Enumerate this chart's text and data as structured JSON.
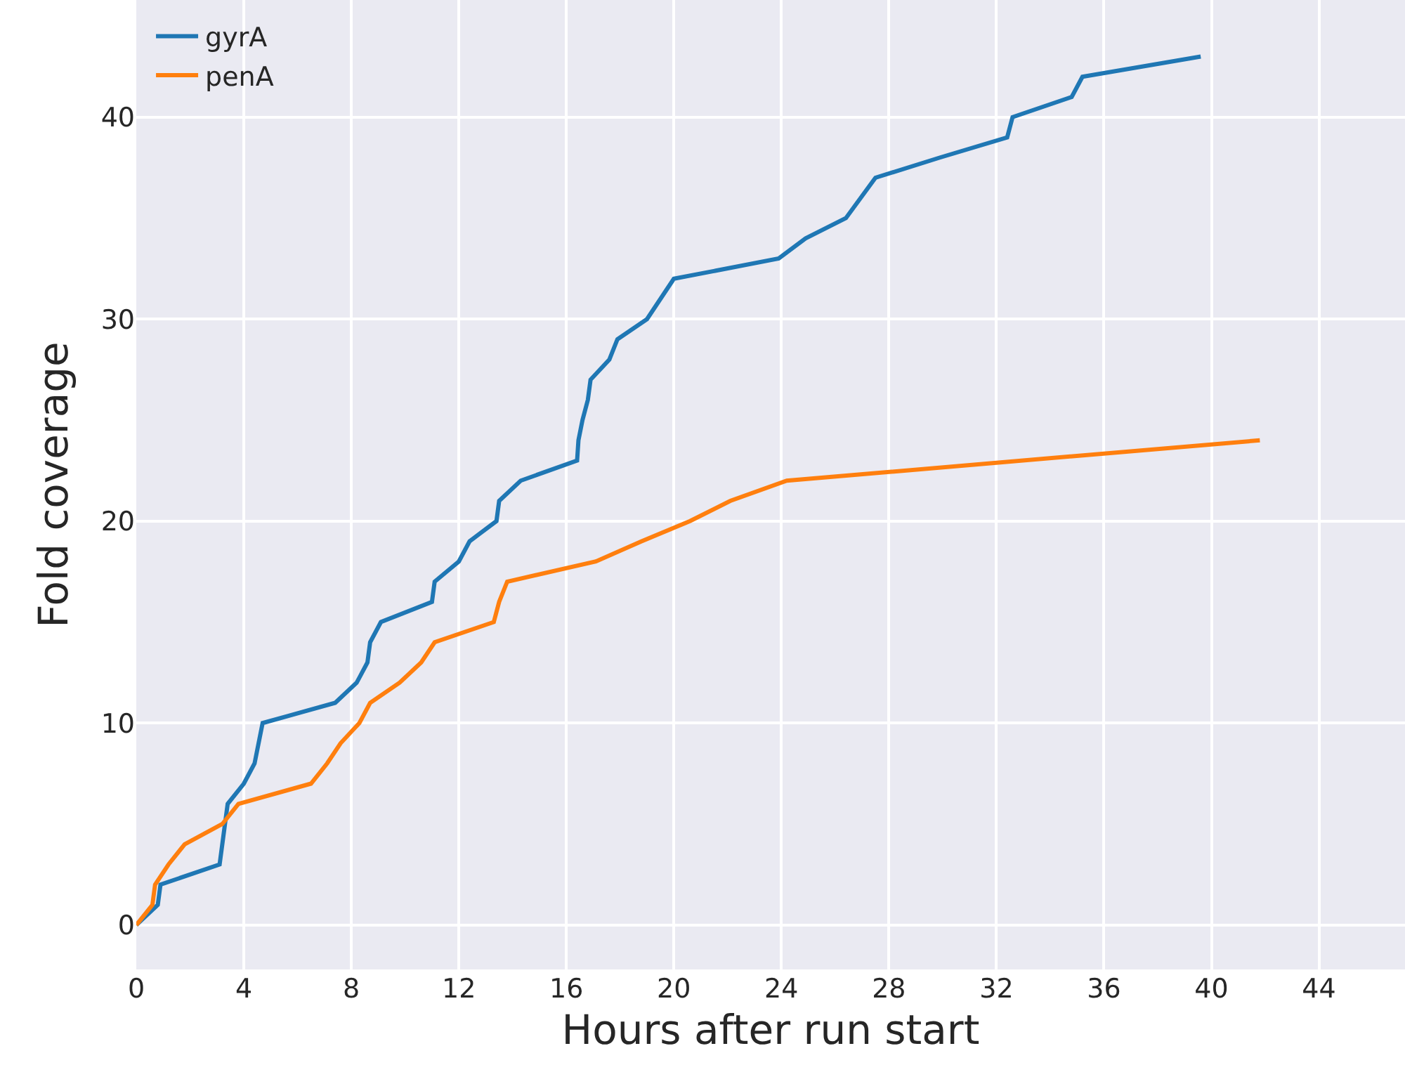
{
  "chart_data": {
    "type": "line",
    "xlabel": "Hours after run start",
    "ylabel": "Fold coverage",
    "xlim": [
      0,
      47.2
    ],
    "ylim": [
      -2.2,
      45.8
    ],
    "xticks": [
      0,
      4,
      8,
      12,
      16,
      20,
      24,
      28,
      32,
      36,
      40,
      44
    ],
    "yticks": [
      0,
      10,
      20,
      30,
      40
    ],
    "grid": true,
    "legend": "top left",
    "marker": "none",
    "line_style": "solid",
    "series": [
      {
        "name": "gyrA",
        "color": "#1f77b4",
        "x": [
          0,
          0.8,
          0.9,
          3.1,
          3.3,
          3.4,
          4.0,
          4.4,
          4.7,
          7.4,
          8.2,
          8.6,
          8.7,
          9.1,
          11.0,
          11.1,
          12.0,
          12.4,
          13.4,
          13.5,
          14.3,
          16.4,
          16.45,
          16.6,
          16.8,
          16.9,
          17.6,
          17.9,
          19.0,
          20.0,
          23.9,
          24.9,
          26.4,
          27.5,
          29.9,
          32.4,
          32.6,
          34.8,
          35.2,
          39.6
        ],
        "values": [
          0,
          1,
          2,
          3,
          5,
          6,
          7,
          8,
          10,
          11,
          12,
          13,
          14,
          15,
          16,
          17,
          18,
          19,
          20,
          21,
          22,
          23,
          24,
          25,
          26,
          27,
          28,
          29,
          30,
          32,
          33,
          34,
          35,
          37,
          38,
          39,
          40,
          41,
          42,
          43
        ]
      },
      {
        "name": "penA",
        "color": "#ff7f0e",
        "x": [
          0,
          0.6,
          0.7,
          1.2,
          1.8,
          3.2,
          3.8,
          6.5,
          7.1,
          7.6,
          8.3,
          8.7,
          9.8,
          10.6,
          11.1,
          13.3,
          13.5,
          13.8,
          17.1,
          18.8,
          20.6,
          22.1,
          24.2,
          41.8
        ],
        "values": [
          0,
          1,
          2,
          3,
          4,
          5,
          6,
          7,
          8,
          9,
          10,
          11,
          12,
          13,
          14,
          15,
          16,
          17,
          18,
          19,
          20,
          21,
          22,
          24
        ]
      }
    ]
  }
}
